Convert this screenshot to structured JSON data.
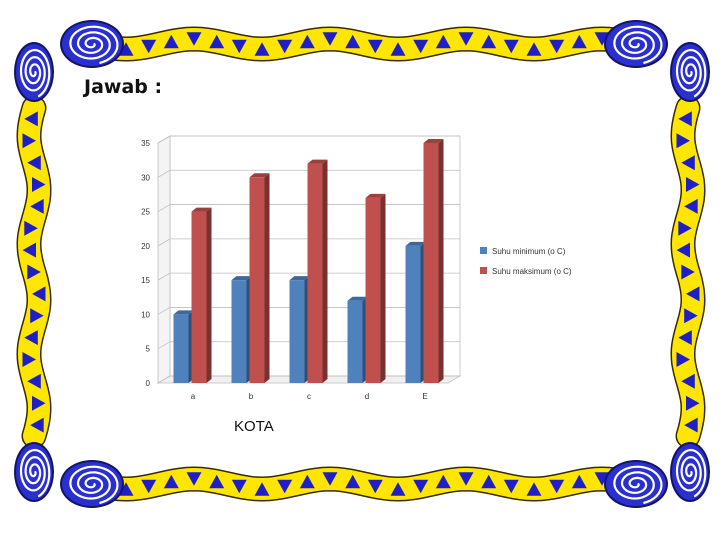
{
  "page": {
    "heading": "Jawab :"
  },
  "colors": {
    "border_yellow": "#FFE600",
    "border_blue": "#1F1FC8",
    "spiral_blue": "#2A2FD0",
    "series_min": "#4F81BD",
    "series_max": "#C0504D",
    "grid": "#BFBFBF"
  },
  "icons": {
    "corner": "spiral-icon",
    "border_pattern": "blue-triangle-icon"
  },
  "chart_data": {
    "type": "bar",
    "style": "3d-clustered-column",
    "categories": [
      "a",
      "b",
      "c",
      "d",
      "E"
    ],
    "series": [
      {
        "name": "Suhu minimum (o C)",
        "values": [
          10,
          15,
          15,
          12,
          20
        ]
      },
      {
        "name": "Suhu maksimum (o C)",
        "values": [
          25,
          30,
          32,
          27,
          35
        ]
      }
    ],
    "y_ticks": [
      "0",
      "5",
      "10",
      "15",
      "20",
      "25",
      "30",
      "35"
    ],
    "ylim": [
      0,
      35
    ],
    "grid": true,
    "legend_position": "right",
    "xlabel": "KOTA",
    "ylabel": "",
    "title": ""
  }
}
